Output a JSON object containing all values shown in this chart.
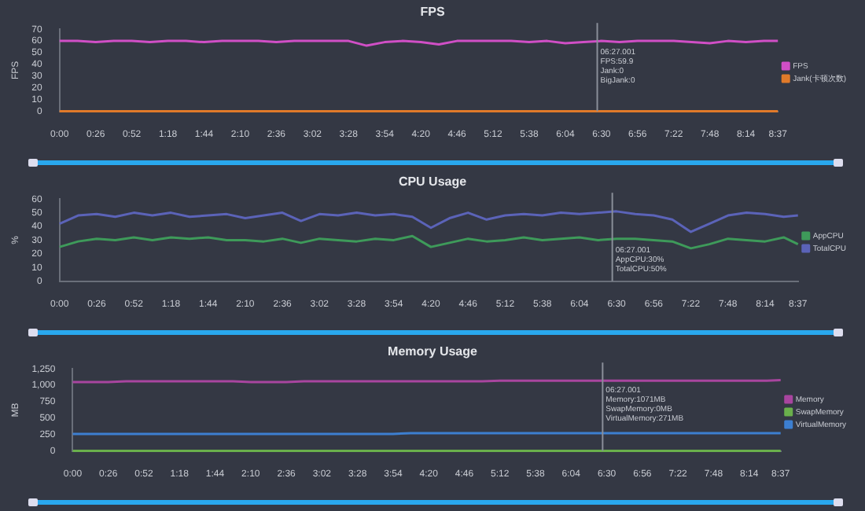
{
  "chart_data": [
    {
      "type": "line",
      "title": "FPS",
      "ylabel": "FPS",
      "x": [
        0,
        13,
        26,
        39,
        52,
        65,
        78,
        91,
        104,
        117,
        130,
        143,
        156,
        169,
        182,
        195,
        208,
        221,
        234,
        247,
        260,
        273,
        286,
        299,
        312,
        325,
        338,
        351,
        364,
        377,
        390,
        403,
        416,
        429,
        442,
        455,
        468,
        481,
        494,
        507,
        517
      ],
      "series": [
        {
          "name": "FPS",
          "color": "#d04fc6",
          "values": [
            60,
            60,
            59,
            60,
            60,
            59,
            60,
            60,
            59,
            60,
            60,
            60,
            59,
            60,
            60,
            60,
            60,
            56,
            59,
            60,
            59,
            57,
            60,
            60,
            60,
            60,
            59,
            60,
            58,
            59,
            60,
            59,
            60,
            60,
            60,
            59,
            58,
            60,
            59,
            60,
            60
          ]
        },
        {
          "name": "Jank(卡顿次数)",
          "color": "#e07a2a",
          "values": [
            0,
            0,
            0,
            0,
            0,
            0,
            0,
            0,
            0,
            0,
            0,
            0,
            0,
            0,
            0,
            0,
            0,
            0,
            0,
            0,
            0,
            0,
            0,
            0,
            0,
            0,
            0,
            0,
            0,
            0,
            0,
            0,
            0,
            0,
            0,
            0,
            0,
            0,
            0,
            0,
            0
          ]
        }
      ],
      "xlim": [
        0,
        517
      ],
      "xticks": [
        {
          "value": 0,
          "label": "0:00"
        },
        {
          "value": 26,
          "label": "0:26"
        },
        {
          "value": 52,
          "label": "0:52"
        },
        {
          "value": 78,
          "label": "1:18"
        },
        {
          "value": 104,
          "label": "1:44"
        },
        {
          "value": 130,
          "label": "2:10"
        },
        {
          "value": 156,
          "label": "2:36"
        },
        {
          "value": 182,
          "label": "3:02"
        },
        {
          "value": 208,
          "label": "3:28"
        },
        {
          "value": 234,
          "label": "3:54"
        },
        {
          "value": 260,
          "label": "4:20"
        },
        {
          "value": 286,
          "label": "4:46"
        },
        {
          "value": 312,
          "label": "5:12"
        },
        {
          "value": 338,
          "label": "5:38"
        },
        {
          "value": 364,
          "label": "6:04"
        },
        {
          "value": 390,
          "label": "6:30"
        },
        {
          "value": 416,
          "label": "6:56"
        },
        {
          "value": 442,
          "label": "7:22"
        },
        {
          "value": 468,
          "label": "7:48"
        },
        {
          "value": 494,
          "label": "8:14"
        },
        {
          "value": 517,
          "label": "8:37"
        }
      ],
      "ylim": [
        0,
        70
      ],
      "yticks": [
        0,
        10,
        20,
        30,
        40,
        50,
        60,
        70
      ],
      "ref_lines": [
        {
          "axis": "x",
          "value": 387,
          "color": "#8a8f99"
        }
      ],
      "annotations": [
        "06:27.001",
        "FPS:59.9",
        "Jank:0",
        "BigJank:0"
      ],
      "legend": "right",
      "grid": false,
      "marker": "none",
      "line_style": "solid"
    },
    {
      "type": "line",
      "title": "CPU Usage",
      "ylabel": "%",
      "x": [
        0,
        13,
        26,
        39,
        52,
        65,
        78,
        91,
        104,
        117,
        130,
        143,
        156,
        169,
        182,
        195,
        208,
        221,
        234,
        247,
        260,
        273,
        286,
        299,
        312,
        325,
        338,
        351,
        364,
        377,
        390,
        403,
        416,
        429,
        442,
        455,
        468,
        481,
        494,
        507,
        517
      ],
      "series": [
        {
          "name": "AppCPU",
          "color": "#3e9a5a",
          "values": [
            25,
            29,
            31,
            30,
            32,
            30,
            32,
            31,
            32,
            30,
            30,
            29,
            31,
            28,
            31,
            30,
            29,
            31,
            30,
            33,
            25,
            28,
            31,
            29,
            30,
            32,
            30,
            31,
            32,
            30,
            31,
            31,
            30,
            29,
            24,
            27,
            31,
            30,
            29,
            32,
            27
          ]
        },
        {
          "name": "TotalCPU",
          "color": "#5b63b8",
          "values": [
            42,
            48,
            49,
            47,
            50,
            48,
            50,
            47,
            48,
            49,
            46,
            48,
            50,
            44,
            49,
            48,
            50,
            48,
            49,
            47,
            39,
            46,
            50,
            45,
            48,
            49,
            48,
            50,
            49,
            50,
            51,
            49,
            48,
            45,
            36,
            42,
            48,
            50,
            49,
            47,
            48
          ]
        }
      ],
      "xlim": [
        0,
        517
      ],
      "xticks": [
        {
          "value": 0,
          "label": "0:00"
        },
        {
          "value": 26,
          "label": "0:26"
        },
        {
          "value": 52,
          "label": "0:52"
        },
        {
          "value": 78,
          "label": "1:18"
        },
        {
          "value": 104,
          "label": "1:44"
        },
        {
          "value": 130,
          "label": "2:10"
        },
        {
          "value": 156,
          "label": "2:36"
        },
        {
          "value": 182,
          "label": "3:02"
        },
        {
          "value": 208,
          "label": "3:28"
        },
        {
          "value": 234,
          "label": "3:54"
        },
        {
          "value": 260,
          "label": "4:20"
        },
        {
          "value": 286,
          "label": "4:46"
        },
        {
          "value": 312,
          "label": "5:12"
        },
        {
          "value": 338,
          "label": "5:38"
        },
        {
          "value": 364,
          "label": "6:04"
        },
        {
          "value": 390,
          "label": "6:30"
        },
        {
          "value": 416,
          "label": "6:56"
        },
        {
          "value": 442,
          "label": "7:22"
        },
        {
          "value": 468,
          "label": "7:48"
        },
        {
          "value": 494,
          "label": "8:14"
        },
        {
          "value": 517,
          "label": "8:37"
        }
      ],
      "ylim": [
        0,
        60
      ],
      "yticks": [
        0,
        10,
        20,
        30,
        40,
        50,
        60
      ],
      "ref_lines": [
        {
          "axis": "x",
          "value": 387,
          "color": "#8a8f99"
        }
      ],
      "annotations": [
        "06:27.001",
        "AppCPU:30%",
        "TotalCPU:50%"
      ],
      "legend": "right",
      "grid": false,
      "marker": "none",
      "line_style": "solid"
    },
    {
      "type": "line",
      "title": "Memory Usage",
      "ylabel": "MB",
      "x": [
        0,
        13,
        26,
        39,
        52,
        65,
        78,
        91,
        104,
        117,
        130,
        143,
        156,
        169,
        182,
        195,
        208,
        221,
        234,
        247,
        260,
        273,
        286,
        299,
        312,
        325,
        338,
        351,
        364,
        377,
        390,
        403,
        416,
        429,
        442,
        455,
        468,
        481,
        494,
        507,
        517
      ],
      "series": [
        {
          "name": "Memory",
          "color": "#a8459f",
          "values": [
            1050,
            1050,
            1050,
            1060,
            1060,
            1060,
            1060,
            1060,
            1060,
            1060,
            1050,
            1050,
            1050,
            1060,
            1060,
            1060,
            1060,
            1060,
            1060,
            1060,
            1060,
            1060,
            1060,
            1060,
            1070,
            1070,
            1070,
            1070,
            1070,
            1070,
            1070,
            1070,
            1070,
            1070,
            1070,
            1070,
            1070,
            1070,
            1070,
            1070,
            1080
          ]
        },
        {
          "name": "SwapMemory",
          "color": "#6ab04c",
          "values": [
            0,
            0,
            0,
            0,
            0,
            0,
            0,
            0,
            0,
            0,
            0,
            0,
            0,
            0,
            0,
            0,
            0,
            0,
            0,
            0,
            0,
            0,
            0,
            0,
            0,
            0,
            0,
            0,
            0,
            0,
            0,
            0,
            0,
            0,
            0,
            0,
            0,
            0,
            0,
            0,
            0
          ]
        },
        {
          "name": "VirtualMemory",
          "color": "#3d7fd0",
          "values": [
            260,
            260,
            260,
            260,
            260,
            260,
            260,
            260,
            260,
            260,
            260,
            260,
            260,
            260,
            260,
            260,
            260,
            260,
            260,
            270,
            270,
            270,
            270,
            270,
            270,
            270,
            270,
            270,
            270,
            270,
            270,
            270,
            270,
            270,
            270,
            270,
            270,
            270,
            270,
            270,
            270
          ]
        }
      ],
      "xlim": [
        0,
        517
      ],
      "xticks": [
        {
          "value": 0,
          "label": "0:00"
        },
        {
          "value": 26,
          "label": "0:26"
        },
        {
          "value": 52,
          "label": "0:52"
        },
        {
          "value": 78,
          "label": "1:18"
        },
        {
          "value": 104,
          "label": "1:44"
        },
        {
          "value": 130,
          "label": "2:10"
        },
        {
          "value": 156,
          "label": "2:36"
        },
        {
          "value": 182,
          "label": "3:02"
        },
        {
          "value": 208,
          "label": "3:28"
        },
        {
          "value": 234,
          "label": "3:54"
        },
        {
          "value": 260,
          "label": "4:20"
        },
        {
          "value": 286,
          "label": "4:46"
        },
        {
          "value": 312,
          "label": "5:12"
        },
        {
          "value": 338,
          "label": "5:38"
        },
        {
          "value": 364,
          "label": "6:04"
        },
        {
          "value": 390,
          "label": "6:30"
        },
        {
          "value": 416,
          "label": "6:56"
        },
        {
          "value": 442,
          "label": "7:22"
        },
        {
          "value": 468,
          "label": "7:48"
        },
        {
          "value": 494,
          "label": "8:14"
        },
        {
          "value": 517,
          "label": "8:37"
        }
      ],
      "ylim": [
        0,
        1250
      ],
      "yticks": [
        0,
        250,
        500,
        750,
        {
          "value": 1000,
          "label": "1,000"
        },
        {
          "value": 1250,
          "label": "1,250"
        }
      ],
      "ref_lines": [
        {
          "axis": "x",
          "value": 387,
          "color": "#8a8f99"
        }
      ],
      "annotations": [
        "06:27.001",
        "Memory:1071MB",
        "SwapMemory:0MB",
        "VirtualMemory:271MB"
      ],
      "legend": "right",
      "grid": false,
      "marker": "none",
      "line_style": "solid"
    }
  ]
}
